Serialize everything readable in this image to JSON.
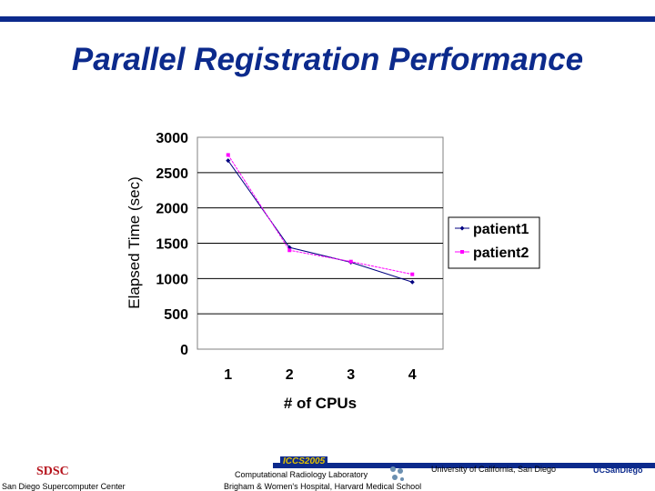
{
  "title": "Parallel Registration Performance",
  "chart_data": {
    "type": "line",
    "xlabel": "# of CPUs",
    "ylabel": "Elapsed Time (sec)",
    "categories": [
      "1",
      "2",
      "3",
      "4"
    ],
    "ylim": [
      0,
      3000
    ],
    "yticks": [
      "0",
      "500",
      "1000",
      "1500",
      "2000",
      "2500",
      "3000"
    ],
    "grid": true,
    "legend": "right",
    "series": [
      {
        "name": "patient1",
        "values": [
          2670,
          1440,
          1230,
          950
        ],
        "color": "#000080",
        "marker": "diamond"
      },
      {
        "name": "patient2",
        "values": [
          2750,
          1400,
          1240,
          1060
        ],
        "color": "#ff00ff",
        "marker": "square"
      }
    ]
  },
  "footer": {
    "left_logo": "SDSC",
    "left_text": "San Diego Supercomputer Center",
    "conference": "ICCS2005",
    "lab_line1": "Computational Radiology Laboratory",
    "lab_line2": "Brigham & Women's Hospital, Harvard Medical School",
    "university": "University of California, San Diego",
    "right_logo": "UCSanDiego"
  }
}
